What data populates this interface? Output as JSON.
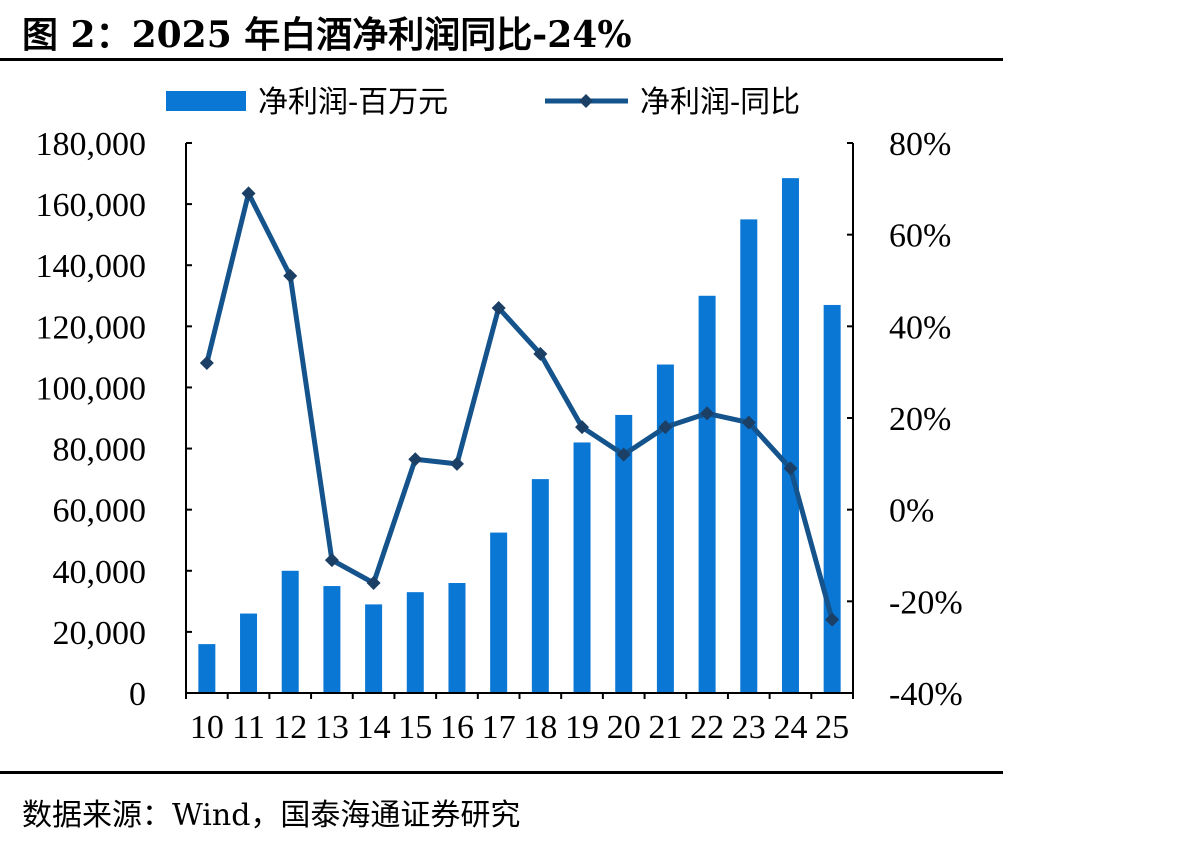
{
  "header": {
    "title": "图 2：2025 年白酒净利润同比-24%"
  },
  "footer": {
    "source": "数据来源：Wind，国泰海通证券研究"
  },
  "colors": {
    "bar": "#0A77D5",
    "line": "#14538B",
    "marker": "#1C3F66"
  },
  "chart_data": {
    "type": "bar",
    "title": "图 2：2025 年白酒净利润同比-24%",
    "categories": [
      "10",
      "11",
      "12",
      "13",
      "14",
      "15",
      "16",
      "17",
      "18",
      "19",
      "20",
      "21",
      "22",
      "23",
      "24",
      "25"
    ],
    "series": [
      {
        "name": "净利润-百万元",
        "type": "bar",
        "axis": "left",
        "values": [
          16000,
          26000,
          40000,
          35000,
          29000,
          33000,
          36000,
          52500,
          70000,
          82000,
          91000,
          107500,
          130000,
          155000,
          168500,
          127000
        ]
      },
      {
        "name": "净利润-同比",
        "type": "line",
        "axis": "right",
        "marker": "diamond",
        "values": [
          0.32,
          0.69,
          0.51,
          -0.11,
          -0.16,
          0.11,
          0.1,
          0.44,
          0.34,
          0.18,
          0.12,
          0.18,
          0.21,
          0.19,
          0.09,
          -0.24
        ]
      }
    ],
    "y_left": {
      "min": 0,
      "max": 180000,
      "step": 20000,
      "tick_labels": [
        "0",
        "20,000",
        "40,000",
        "60,000",
        "80,000",
        "100,000",
        "120,000",
        "140,000",
        "160,000",
        "180,000"
      ]
    },
    "y_right": {
      "min": -0.4,
      "max": 0.8,
      "step": 0.2,
      "tick_labels": [
        "-40%",
        "-20%",
        "0%",
        "20%",
        "40%",
        "60%",
        "80%"
      ]
    },
    "legend": {
      "position": "top"
    },
    "grid": false
  }
}
